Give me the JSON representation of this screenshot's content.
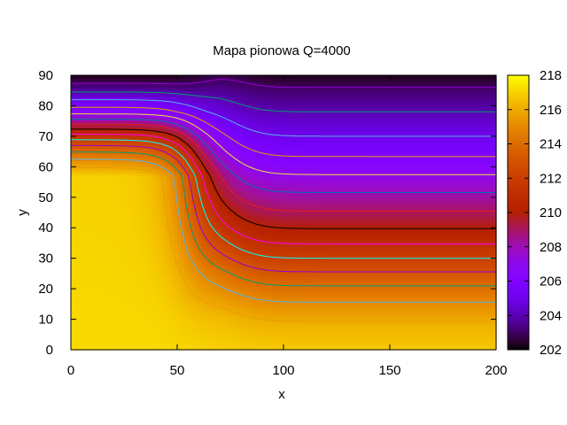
{
  "chart_data": {
    "type": "heatmap",
    "title": "Mapa pionowa Q=4000",
    "xlabel": "x",
    "ylabel": "y",
    "xlim": [
      0,
      200
    ],
    "ylim": [
      0,
      90
    ],
    "x_ticks": [
      "0",
      "50",
      "100",
      "150",
      "200"
    ],
    "x_tick_values": [
      0,
      50,
      100,
      150,
      200
    ],
    "y_ticks": [
      "0",
      "10",
      "20",
      "30",
      "40",
      "50",
      "60",
      "70",
      "80",
      "90"
    ],
    "y_tick_values": [
      0,
      10,
      20,
      30,
      40,
      50,
      60,
      70,
      80,
      90
    ],
    "colorbar": {
      "range": [
        202,
        218
      ],
      "ticks": [
        "202",
        "204",
        "206",
        "208",
        "210",
        "212",
        "214",
        "216",
        "218"
      ],
      "tick_values": [
        202,
        204,
        206,
        208,
        210,
        212,
        214,
        216,
        218
      ],
      "palette": "gnuplot (black-purple-red-orange-yellow)"
    },
    "field": {
      "description": "Vertical temperature map; hot plateau on the left, transition around x=55",
      "left_profile": {
        "x_range": [
          0,
          45
        ],
        "y": [
          0,
          57,
          58,
          62,
          66,
          70,
          74,
          78,
          82,
          86,
          90
        ],
        "value": [
          217.2,
          217.0,
          216.6,
          215.2,
          213.5,
          211.4,
          209.0,
          206.6,
          205.0,
          203.4,
          202.2
        ]
      },
      "right_profile": {
        "x_range": [
          115,
          200
        ],
        "y": [
          0,
          8,
          14,
          22,
          30,
          38,
          46,
          54,
          62,
          70,
          78,
          86,
          90
        ],
        "value": [
          216.8,
          216.2,
          215.3,
          213.8,
          212.0,
          210.3,
          208.9,
          207.6,
          206.2,
          205.0,
          204.0,
          203.0,
          202.2
        ]
      },
      "transition_center_x": 58,
      "contour_interval": 1
    }
  }
}
